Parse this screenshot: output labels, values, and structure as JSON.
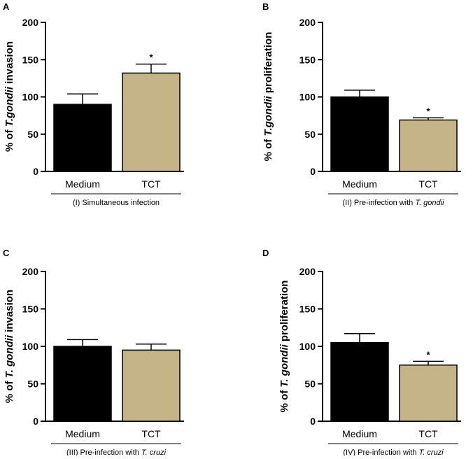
{
  "colors": {
    "medium": "#000000",
    "tct": "#C4B487",
    "axis": "#000000"
  },
  "chart_data": [
    {
      "type": "bar",
      "panel_label": "A",
      "ylabel_parts": [
        "% of ",
        "T.gondii",
        " invasion"
      ],
      "categories": [
        "Medium",
        "TCT"
      ],
      "values": [
        90,
        132
      ],
      "errors": [
        14,
        12
      ],
      "significance": [
        "",
        "*"
      ],
      "condition_parts": [
        "(I) Simultaneous infection",
        ""
      ],
      "ylim": [
        0,
        200
      ],
      "yticks": [
        0,
        50,
        100,
        150,
        200
      ]
    },
    {
      "type": "bar",
      "panel_label": "B",
      "ylabel_parts": [
        "% of ",
        "T.gondii",
        " proliferation"
      ],
      "categories": [
        "Medium",
        "TCT"
      ],
      "values": [
        100,
        69
      ],
      "errors": [
        9,
        3
      ],
      "significance": [
        "",
        "*"
      ],
      "condition_parts": [
        "(II) Pre-infection with ",
        "T. gondii"
      ],
      "ylim": [
        0,
        200
      ],
      "yticks": [
        0,
        50,
        100,
        150,
        200
      ]
    },
    {
      "type": "bar",
      "panel_label": "C",
      "ylabel_parts": [
        "% of ",
        "T. gondii",
        " invasion"
      ],
      "categories": [
        "Medium",
        "TCT"
      ],
      "values": [
        100,
        95
      ],
      "errors": [
        9,
        8
      ],
      "significance": [
        "",
        ""
      ],
      "condition_parts": [
        "(III) Pre-infection with ",
        "T. cruzi"
      ],
      "ylim": [
        0,
        200
      ],
      "yticks": [
        0,
        50,
        100,
        150,
        200
      ]
    },
    {
      "type": "bar",
      "panel_label": "D",
      "ylabel_parts": [
        "% of ",
        "T. gondii",
        " proliferation"
      ],
      "categories": [
        "Medium",
        "TCT"
      ],
      "values": [
        105,
        75
      ],
      "errors": [
        12,
        5
      ],
      "significance": [
        "",
        "*"
      ],
      "condition_parts": [
        "(IV) Pre-infection with ",
        "T. cruzi"
      ],
      "ylim": [
        0,
        200
      ],
      "yticks": [
        0,
        50,
        100,
        150,
        200
      ]
    }
  ]
}
